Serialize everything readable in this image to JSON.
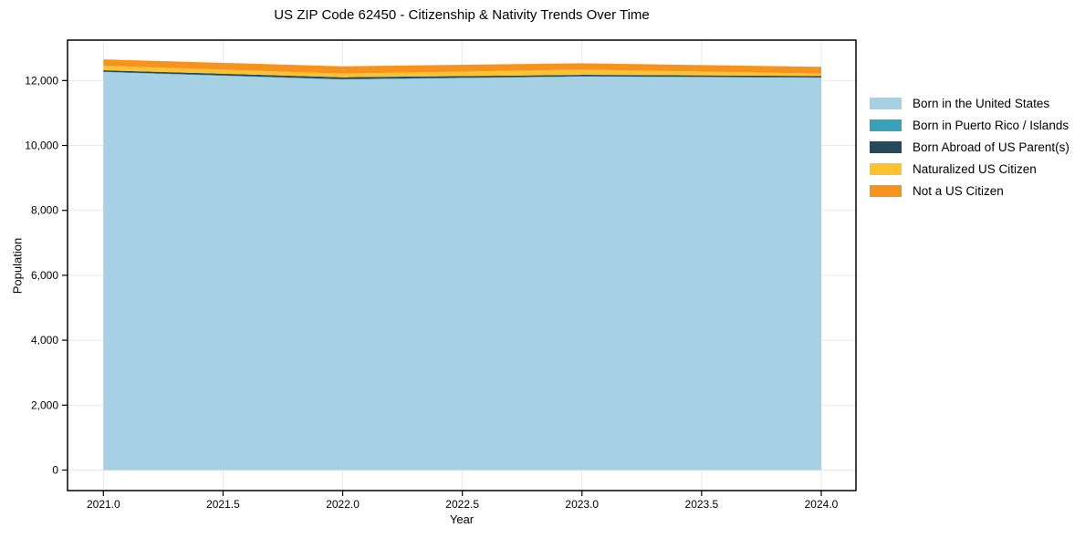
{
  "chart_data": {
    "type": "area",
    "stacked": true,
    "title": "US ZIP Code 62450 - Citizenship & Nativity Trends Over Time",
    "xlabel": "Year",
    "ylabel": "Population",
    "x": [
      2021,
      2022,
      2023,
      2024
    ],
    "series": [
      {
        "name": "Born in the United States",
        "color": "#a6d0e4",
        "values": [
          12260,
          12030,
          12120,
          12085
        ]
      },
      {
        "name": "Born in Puerto Rico / Islands",
        "color": "#3aa2b8",
        "values": [
          12,
          12,
          10,
          10
        ]
      },
      {
        "name": "Born Abroad of US Parent(s)",
        "color": "#26495c",
        "values": [
          45,
          60,
          46,
          46
        ]
      },
      {
        "name": "Naturalized US Citizen",
        "color": "#fcc22f",
        "values": [
          140,
          112,
          160,
          73
        ]
      },
      {
        "name": "Not a US Citizen",
        "color": "#f6931e",
        "values": [
          195,
          225,
          197,
          208
        ]
      }
    ],
    "xlim": [
      2020.85,
      2024.145
    ],
    "ylim": [
      -632,
      13245
    ],
    "x_ticks": [
      {
        "value": 2021.0,
        "label": "2021.0"
      },
      {
        "value": 2021.5,
        "label": "2021.5"
      },
      {
        "value": 2022.0,
        "label": "2022.0"
      },
      {
        "value": 2022.5,
        "label": "2022.5"
      },
      {
        "value": 2023.0,
        "label": "2023.0"
      },
      {
        "value": 2023.5,
        "label": "2023.5"
      },
      {
        "value": 2024.0,
        "label": "2024.0"
      }
    ],
    "y_ticks": [
      {
        "value": 0,
        "label": "0"
      },
      {
        "value": 2000,
        "label": "2,000"
      },
      {
        "value": 4000,
        "label": "4,000"
      },
      {
        "value": 6000,
        "label": "6,000"
      },
      {
        "value": 8000,
        "label": "8,000"
      },
      {
        "value": 10000,
        "label": "10,000"
      },
      {
        "value": 12000,
        "label": "12,000"
      }
    ],
    "grid": true,
    "legend_position": "right"
  },
  "colors": {
    "background": "#ffffff",
    "grid": "#e9e9e9",
    "spine": "#000000",
    "tick_text": "#000000"
  }
}
